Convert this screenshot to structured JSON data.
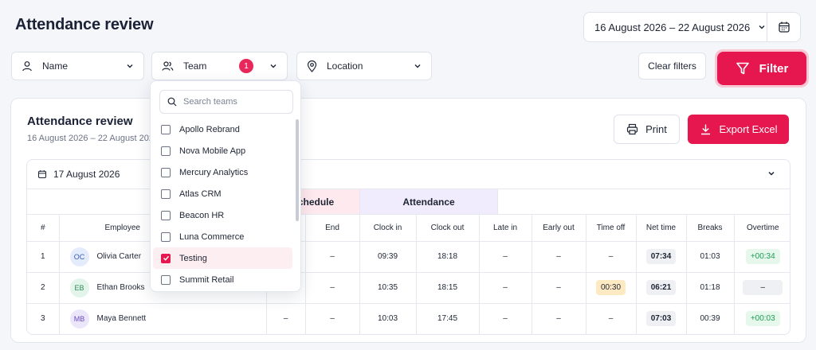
{
  "header": {
    "title": "Attendance review",
    "date_range": "16 August 2026 – 22 August 2026"
  },
  "filters": {
    "name_label": "Name",
    "team_label": "Team",
    "team_count": "1",
    "location_label": "Location",
    "clear_label": "Clear filters",
    "filter_label": "Filter"
  },
  "team_dropdown": {
    "search_placeholder": "Search teams",
    "items": [
      {
        "label": "Apollo Rebrand",
        "checked": false
      },
      {
        "label": "Nova Mobile App",
        "checked": false
      },
      {
        "label": "Mercury Analytics",
        "checked": false
      },
      {
        "label": "Atlas CRM",
        "checked": false
      },
      {
        "label": "Beacon HR",
        "checked": false
      },
      {
        "label": "Luna Commerce",
        "checked": false
      },
      {
        "label": "Testing",
        "checked": true
      },
      {
        "label": "Summit Retail",
        "checked": false
      }
    ]
  },
  "report": {
    "title": "Attendance review",
    "subtitle": "16 August 2026 – 22 August 2026",
    "print_label": "Print",
    "export_label": "Export Excel",
    "day": "17 August 2026",
    "groups": {
      "schedule": "Schedule",
      "attendance": "Attendance"
    },
    "columns": [
      "#",
      "Employee",
      "",
      "End",
      "Clock in",
      "Clock out",
      "Late in",
      "Early out",
      "Time off",
      "Net time",
      "Breaks",
      "Overtime"
    ],
    "rows": [
      {
        "num": "1",
        "initials": "OC",
        "name": "Olivia Carter",
        "start": "",
        "end": "–",
        "clock_in": "09:39",
        "clock_out": "18:18",
        "late_in": "–",
        "early_out": "–",
        "time_off": "–",
        "net_time": "07:34",
        "breaks": "01:03",
        "overtime": "+00:34"
      },
      {
        "num": "2",
        "initials": "EB",
        "name": "Ethan Brooks",
        "start": "",
        "end": "–",
        "clock_in": "10:35",
        "clock_out": "18:15",
        "late_in": "–",
        "early_out": "–",
        "time_off": "00:30",
        "net_time": "06:21",
        "breaks": "01:18",
        "overtime": "–"
      },
      {
        "num": "3",
        "initials": "MB",
        "name": "Maya Bennett",
        "start": "–",
        "end": "–",
        "clock_in": "10:03",
        "clock_out": "17:45",
        "late_in": "–",
        "early_out": "–",
        "time_off": "–",
        "net_time": "07:03",
        "breaks": "00:39",
        "overtime": "+00:03"
      }
    ]
  },
  "colors": {
    "accent": "#e6174f",
    "avatar_oc": "#e4ecfc",
    "avatar_eb": "#e3f5ea",
    "avatar_mb": "#ece6fb"
  },
  "icons": [
    "user-icon",
    "users-icon",
    "map-pin-icon",
    "calendar-icon",
    "funnel-icon",
    "printer-icon",
    "download-icon",
    "search-icon",
    "chevron-down-icon"
  ]
}
